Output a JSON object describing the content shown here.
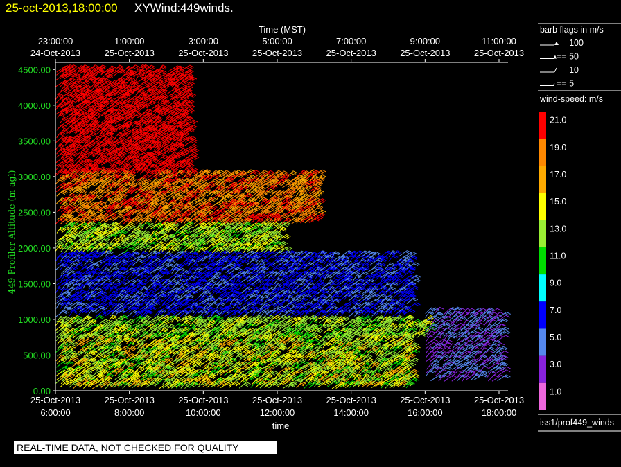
{
  "header": {
    "date_time": "25-oct-2013,18:00:00",
    "plot_title": "XYWind:449winds."
  },
  "footer": {
    "quality_note": "REAL-TIME DATA, NOT CHECKED FOR QUALITY",
    "source": "iss1/prof449_winds"
  },
  "colors": {
    "background": "#000000",
    "axis_text": "#ffffff",
    "y_axis_text": "#22dd22",
    "title_date": "#ffff00"
  },
  "barb_legend": {
    "title": "barb flags in m/s",
    "items": [
      {
        "label": "== 100",
        "icon": "barb-flag-100-icon"
      },
      {
        "label": "== 50",
        "icon": "barb-flag-50-icon"
      },
      {
        "label": "== 10",
        "icon": "barb-flag-10-icon"
      },
      {
        "label": "== 5",
        "icon": "barb-flag-5-icon"
      }
    ]
  },
  "color_scale": {
    "title": "wind-speed: m/s",
    "steps": [
      {
        "label": "21.0",
        "color": "#ff0000"
      },
      {
        "label": "19.0",
        "color": "#ff8800"
      },
      {
        "label": "17.0",
        "color": "#ffaa00"
      },
      {
        "label": "15.0",
        "color": "#ffff00"
      },
      {
        "label": "13.0",
        "color": "#99ee33"
      },
      {
        "label": "11.0",
        "color": "#00dd00"
      },
      {
        "label": "9.0",
        "color": "#00ffff"
      },
      {
        "label": "7.0",
        "color": "#0000ff"
      },
      {
        "label": "5.0",
        "color": "#5588ee"
      },
      {
        "label": "3.0",
        "color": "#8822dd"
      },
      {
        "label": "1.0",
        "color": "#ee66dd"
      }
    ]
  },
  "chart_data": {
    "type": "scatter",
    "subtype": "wind-barb",
    "xlabel": "time",
    "top_xlabel": "Time (MST)",
    "ylabel": "449 Profiler Altitude (m agl)",
    "ylim": [
      0,
      4600
    ],
    "yticks": [
      "0.00",
      "500.00",
      "1000.00",
      "1500.00",
      "2000.00",
      "2500.00",
      "3000.00",
      "3500.00",
      "4000.00",
      "4500.00"
    ],
    "bottom_ticks": [
      {
        "line1": "25-Oct-2013",
        "line2": "6:00:00"
      },
      {
        "line1": "25-Oct-2013",
        "line2": "8:00:00"
      },
      {
        "line1": "25-Oct-2013",
        "line2": "10:00:00"
      },
      {
        "line1": "25-Oct-2013",
        "line2": "12:00:00"
      },
      {
        "line1": "25-Oct-2013",
        "line2": "14:00:00"
      },
      {
        "line1": "25-Oct-2013",
        "line2": "16:00:00"
      },
      {
        "line1": "25-Oct-2013",
        "line2": "18:00:00"
      }
    ],
    "top_ticks": [
      {
        "line1": "23:00:00",
        "line2": "24-Oct-2013"
      },
      {
        "line1": "1:00:00",
        "line2": "25-Oct-2013"
      },
      {
        "line1": "3:00:00",
        "line2": "25-Oct-2013"
      },
      {
        "line1": "5:00:00",
        "line2": "25-Oct-2013"
      },
      {
        "line1": "7:00:00",
        "line2": "25-Oct-2013"
      },
      {
        "line1": "9:00:00",
        "line2": "25-Oct-2013"
      },
      {
        "line1": "11:00:00",
        "line2": "25-Oct-2013"
      }
    ],
    "x_hours_range": [
      6,
      18.1
    ],
    "wind_speed_bands_m_s": [
      {
        "alt_min": 0,
        "alt_max": 700,
        "speed_min": 11,
        "speed_max": 17,
        "hour_end": 15.5
      },
      {
        "alt_min": 700,
        "alt_max": 1000,
        "speed_min": 11,
        "speed_max": 15,
        "hour_end": 16.0
      },
      {
        "alt_min": 1000,
        "alt_max": 1900,
        "speed_min": 5,
        "speed_max": 8,
        "hour_end": 15.5
      },
      {
        "alt_min": 1900,
        "alt_max": 2300,
        "speed_min": 11,
        "speed_max": 16,
        "hour_end": 12.0
      },
      {
        "alt_min": 2300,
        "alt_max": 3000,
        "speed_min": 17,
        "speed_max": 21,
        "hour_end": 13.0
      },
      {
        "alt_min": 3000,
        "alt_max": 4500,
        "speed_min": 20,
        "speed_max": 22,
        "hour_end": 9.5
      },
      {
        "alt_min": 100,
        "alt_max": 1100,
        "speed_min": 3,
        "speed_max": 5,
        "hour_start": 16.0,
        "hour_end": 18.0
      }
    ]
  }
}
